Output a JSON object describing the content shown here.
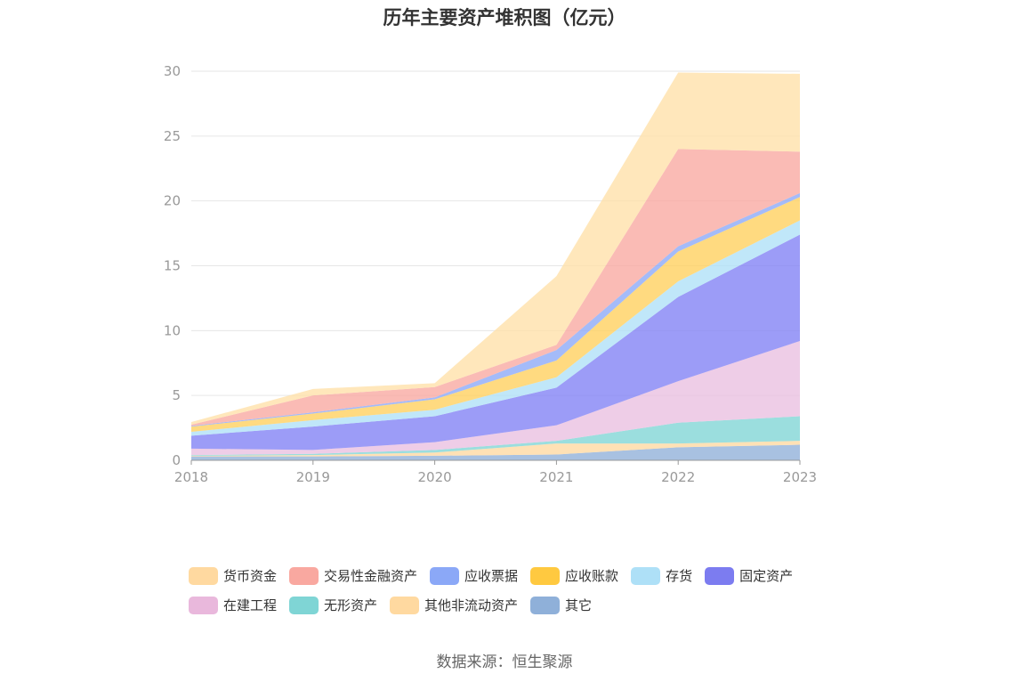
{
  "chart_data": {
    "type": "area",
    "stacked": true,
    "title": "历年主要资产堆积图（亿元）",
    "x": [
      "2018",
      "2019",
      "2020",
      "2021",
      "2022",
      "2023"
    ],
    "ylim": [
      0,
      30
    ],
    "yticks": [
      "0",
      "5",
      "10",
      "15",
      "20",
      "25",
      "30"
    ],
    "grid": true,
    "legend_position": "bottom",
    "series": [
      {
        "name": "其它",
        "color": "#8fb0d9",
        "values": [
          0.3,
          0.3,
          0.35,
          0.45,
          1.0,
          1.2
        ]
      },
      {
        "name": "其他非流动资产",
        "color": "#ffd9a0",
        "values": [
          0.05,
          0.1,
          0.25,
          0.85,
          0.3,
          0.3
        ]
      },
      {
        "name": "无形资产",
        "color": "#7fd5d5",
        "values": [
          0.05,
          0.1,
          0.2,
          0.2,
          1.6,
          1.9
        ]
      },
      {
        "name": "在建工程",
        "color": "#e9bfe0",
        "values": [
          0.5,
          0.3,
          0.6,
          1.2,
          3.2,
          5.8
        ]
      },
      {
        "name": "固定资产",
        "color": "#8080f5",
        "values": [
          1.0,
          1.8,
          2.0,
          2.9,
          6.5,
          8.2
        ]
      },
      {
        "name": "存货",
        "color": "#aee0f7",
        "values": [
          0.3,
          0.5,
          0.5,
          0.8,
          1.2,
          1.1
        ]
      },
      {
        "name": "应收账款",
        "color": "#ffcf5c",
        "values": [
          0.4,
          0.5,
          0.8,
          1.3,
          2.3,
          1.8
        ]
      },
      {
        "name": "应收票据",
        "color": "#8ba8f7",
        "values": [
          0.05,
          0.1,
          0.15,
          0.8,
          0.4,
          0.3
        ]
      },
      {
        "name": "交易性金融资产",
        "color": "#f9a8a0",
        "values": [
          0.1,
          1.3,
          0.8,
          0.4,
          7.5,
          3.2
        ]
      },
      {
        "name": "货币资金",
        "color": "#ffe0a8",
        "values": [
          0.2,
          0.5,
          0.3,
          5.3,
          5.9,
          6.0
        ]
      }
    ],
    "source": "数据来源：恒生聚源"
  },
  "legend_rows": [
    [
      {
        "label": "货币资金",
        "color": "#ffd9a0"
      },
      {
        "label": "交易性金融资产",
        "color": "#f9a8a0"
      },
      {
        "label": "应收票据",
        "color": "#8ba8f7"
      },
      {
        "label": "应收账款",
        "color": "#ffc940"
      },
      {
        "label": "存货",
        "color": "#aee0f7"
      },
      {
        "label": "固定资产",
        "color": "#7c7cf0"
      }
    ],
    [
      {
        "label": "在建工程",
        "color": "#e9b8dc"
      },
      {
        "label": "无形资产",
        "color": "#7fd5d5"
      },
      {
        "label": "其他非流动资产",
        "color": "#ffd9a0"
      },
      {
        "label": "其它",
        "color": "#8fb0d9"
      }
    ]
  ]
}
